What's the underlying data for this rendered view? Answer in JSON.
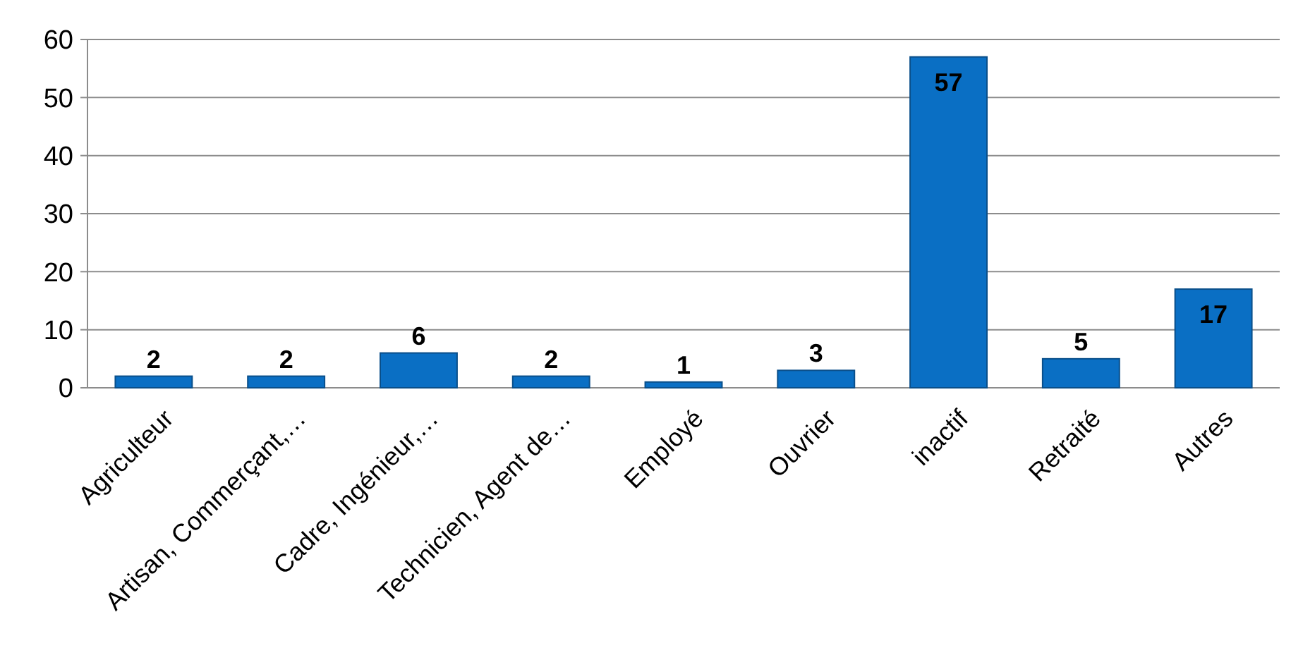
{
  "chart_data": {
    "type": "bar",
    "categories": [
      "Agriculteur",
      "Artisan, Commerçant,…",
      "Cadre, Ingénieur,…",
      "Technicien, Agent de…",
      "Employé",
      "Ouvrier",
      "inactif",
      "Retraité",
      "Autres"
    ],
    "values": [
      2,
      2,
      6,
      2,
      1,
      3,
      57,
      5,
      17
    ],
    "color": "#0a6fc4",
    "ylim": [
      0,
      60
    ],
    "yticks": [
      0,
      10,
      20,
      30,
      40,
      50,
      60
    ],
    "grid": "y",
    "data_labels": true
  }
}
